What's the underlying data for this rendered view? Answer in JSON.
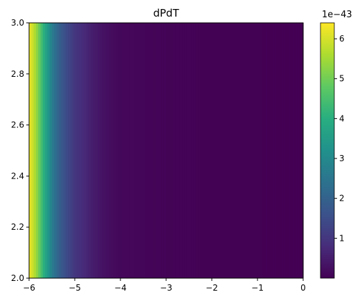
{
  "chart_data": {
    "type": "heatmap",
    "title": "dPdT",
    "xlabel": "",
    "ylabel": "",
    "xlim": [
      -6,
      0
    ],
    "ylim": [
      2.0,
      3.0
    ],
    "x_ticks": [
      "−6",
      "−5",
      "−4",
      "−3",
      "−2",
      "−1",
      "0"
    ],
    "y_ticks": [
      "2.0",
      "2.2",
      "2.4",
      "2.6",
      "2.8",
      "3.0"
    ],
    "colormap": "viridis",
    "value_varies_along": "x",
    "profile": {
      "x": [
        -6.0,
        -5.9,
        -5.8,
        -5.7,
        -5.6,
        -5.5,
        -5.4,
        -5.3,
        -5.2,
        -5.1,
        -5.0,
        -4.8,
        -4.6,
        -4.4,
        -4.2,
        -4.0,
        -3.0,
        -2.0,
        -1.0,
        0.0
      ],
      "values": [
        6.3,
        5.8,
        5.1,
        4.2,
        3.5,
        2.7,
        2.2,
        1.8,
        1.5,
        1.25,
        1.0,
        0.75,
        0.5,
        0.32,
        0.2,
        0.12,
        0.05,
        0.02,
        0.01,
        0.0
      ]
    },
    "colorbar": {
      "range": [
        0,
        6.4
      ],
      "ticks": [
        "1",
        "2",
        "3",
        "4",
        "5",
        "6"
      ],
      "multiplier": "1e−43"
    }
  }
}
